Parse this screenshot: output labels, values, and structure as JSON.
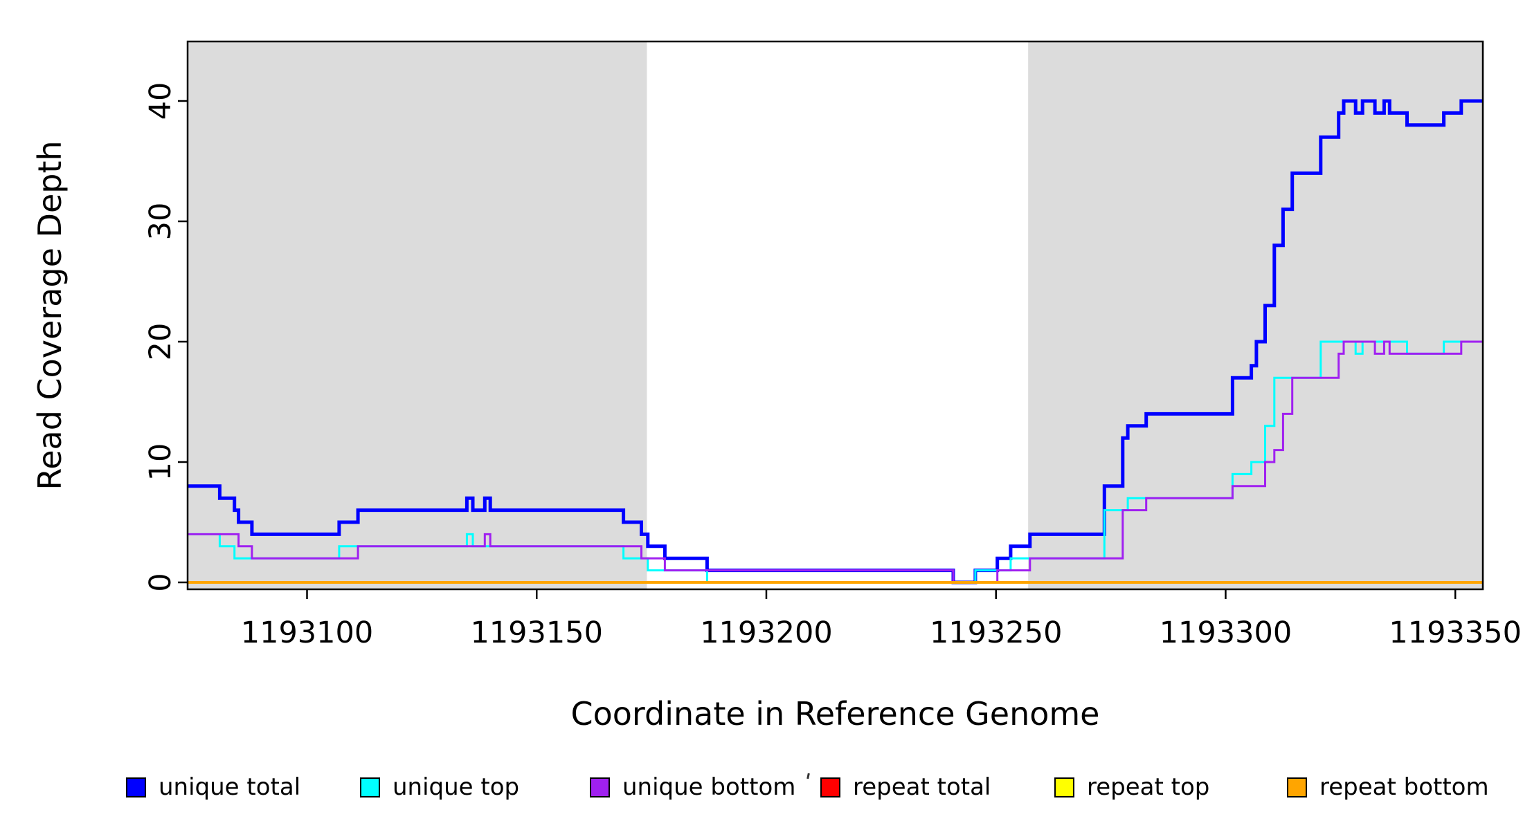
{
  "figure": {
    "x_axis": {
      "title": "Coordinate in Reference Genome",
      "tick_labels": [
        "1193100",
        "1193150",
        "1193200",
        "1193250",
        "1193300",
        "1193350"
      ]
    },
    "y_axis": {
      "title": "Read Coverage Depth",
      "tick_labels": [
        "0",
        "10",
        "20",
        "30",
        "40"
      ]
    }
  },
  "legend": {
    "items": [
      {
        "label": "unique total",
        "color": "#0000FF"
      },
      {
        "label": "unique top",
        "color": "#00FFFF"
      },
      {
        "label": "unique bottom",
        "color": "#A020F0"
      },
      {
        "label": "repeat total",
        "color": "#FF0000"
      },
      {
        "label": "repeat top",
        "color": "#FFFF00"
      },
      {
        "label": "repeat bottom",
        "color": "#FFA500"
      }
    ]
  },
  "colors": {
    "shading": "#DCDCDC",
    "axis": "#000000",
    "background": "#FFFFFF"
  },
  "chart_data": {
    "type": "line",
    "subtype": "step-coverage",
    "title": "",
    "xlabel": "Coordinate in Reference Genome",
    "ylabel": "Read Coverage Depth",
    "xlim": [
      1193074,
      1193356
    ],
    "ylim": [
      0,
      45
    ],
    "x_ticks": [
      1193100,
      1193150,
      1193200,
      1193250,
      1193300,
      1193350
    ],
    "y_ticks": [
      0,
      10,
      20,
      30,
      40
    ],
    "grid": false,
    "legend_position": "bottom",
    "shaded_regions": [
      {
        "x0": 1193074,
        "x1": 1193174,
        "note": "gray background block left"
      },
      {
        "x0": 1193257,
        "x1": 1193356,
        "note": "gray background block right"
      }
    ],
    "series": [
      {
        "name": "unique total",
        "color": "#0000FF",
        "linewidth": 5,
        "start_value": 8,
        "steps": [
          [
            1193081.0,
            7
          ],
          [
            1193084.2,
            6
          ],
          [
            1193085.1,
            5
          ],
          [
            1193088.0,
            4
          ],
          [
            1193107.0,
            5
          ],
          [
            1193111.1,
            6
          ],
          [
            1193134.8,
            7
          ],
          [
            1193136.1,
            6
          ],
          [
            1193138.7,
            7
          ],
          [
            1193139.9,
            6
          ],
          [
            1193168.9,
            5
          ],
          [
            1193172.8,
            4
          ],
          [
            1193174.2,
            3
          ],
          [
            1193177.9,
            2
          ],
          [
            1193187.1,
            1
          ],
          [
            1193240.7,
            0
          ],
          [
            1193245.5,
            1
          ],
          [
            1193250.3,
            2
          ],
          [
            1193253.2,
            3
          ],
          [
            1193257.4,
            4
          ],
          [
            1193273.6,
            8
          ],
          [
            1193277.6,
            12
          ],
          [
            1193278.7,
            13
          ],
          [
            1193282.7,
            14
          ],
          [
            1193301.5,
            17
          ],
          [
            1193305.6,
            18
          ],
          [
            1193306.7,
            20
          ],
          [
            1193308.6,
            23
          ],
          [
            1193310.6,
            28
          ],
          [
            1193312.5,
            31
          ],
          [
            1193314.5,
            34
          ],
          [
            1193320.7,
            37
          ],
          [
            1193324.6,
            39
          ],
          [
            1193325.7,
            40
          ],
          [
            1193328.3,
            39
          ],
          [
            1193329.8,
            40
          ],
          [
            1193332.5,
            39
          ],
          [
            1193334.5,
            40
          ],
          [
            1193335.7,
            39
          ],
          [
            1193339.5,
            38
          ],
          [
            1193347.5,
            39
          ],
          [
            1193351.3,
            40
          ]
        ]
      },
      {
        "name": "unique top",
        "color": "#00FFFF",
        "linewidth": 3,
        "start_value": 4,
        "steps": [
          [
            1193081.0,
            3
          ],
          [
            1193084.2,
            2
          ],
          [
            1193107.0,
            3
          ],
          [
            1193134.8,
            4
          ],
          [
            1193136.1,
            3
          ],
          [
            1193168.9,
            2
          ],
          [
            1193174.2,
            1
          ],
          [
            1193187.1,
            0
          ],
          [
            1193245.5,
            1
          ],
          [
            1193253.2,
            2
          ],
          [
            1193273.6,
            6
          ],
          [
            1193278.7,
            7
          ],
          [
            1193301.5,
            9
          ],
          [
            1193305.6,
            10
          ],
          [
            1193308.6,
            13
          ],
          [
            1193310.6,
            17
          ],
          [
            1193320.7,
            20
          ],
          [
            1193328.3,
            19
          ],
          [
            1193329.8,
            20
          ],
          [
            1193339.5,
            19
          ],
          [
            1193347.5,
            20
          ]
        ]
      },
      {
        "name": "unique bottom",
        "color": "#A020F0",
        "linewidth": 3,
        "start_value": 4,
        "steps": [
          [
            1193085.1,
            3
          ],
          [
            1193088.0,
            2
          ],
          [
            1193111.1,
            3
          ],
          [
            1193138.7,
            4
          ],
          [
            1193139.9,
            3
          ],
          [
            1193172.8,
            2
          ],
          [
            1193177.9,
            1
          ],
          [
            1193240.7,
            0
          ],
          [
            1193250.3,
            1
          ],
          [
            1193257.4,
            2
          ],
          [
            1193277.6,
            6
          ],
          [
            1193282.7,
            7
          ],
          [
            1193301.5,
            8
          ],
          [
            1193308.6,
            10
          ],
          [
            1193310.6,
            11
          ],
          [
            1193312.5,
            14
          ],
          [
            1193314.5,
            17
          ],
          [
            1193324.6,
            19
          ],
          [
            1193325.7,
            20
          ],
          [
            1193332.5,
            19
          ],
          [
            1193334.5,
            20
          ],
          [
            1193335.7,
            19
          ],
          [
            1193351.3,
            20
          ]
        ]
      },
      {
        "name": "repeat total",
        "color": "#FF0000",
        "linewidth": 3,
        "start_value": 0,
        "steps": []
      },
      {
        "name": "repeat top",
        "color": "#FFFF00",
        "linewidth": 3,
        "start_value": 0,
        "steps": []
      },
      {
        "name": "repeat bottom",
        "color": "#FFA500",
        "linewidth": 4,
        "start_value": 0,
        "steps": []
      }
    ]
  }
}
